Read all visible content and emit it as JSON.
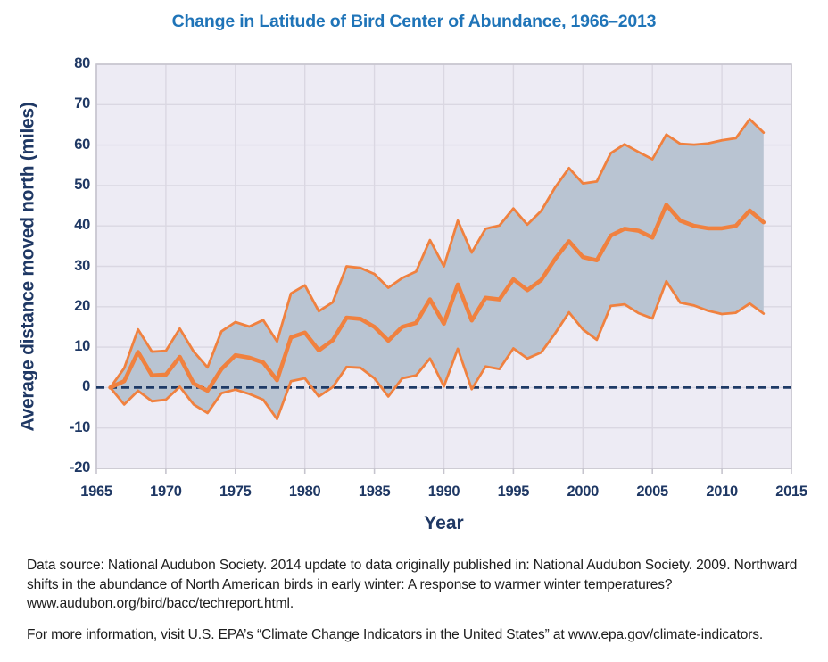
{
  "chart_data": {
    "type": "line",
    "title": "Change in Latitude of Bird Center of Abundance, 1966–2013",
    "xlabel": "Year",
    "ylabel": "Average distance moved north (miles)",
    "xlim": [
      1965,
      2015
    ],
    "ylim": [
      -20,
      80
    ],
    "x_ticks": [
      1965,
      1970,
      1975,
      1980,
      1985,
      1990,
      1995,
      2000,
      2005,
      2010,
      2015
    ],
    "y_ticks": [
      -20,
      -10,
      0,
      10,
      20,
      30,
      40,
      50,
      60,
      70,
      80
    ],
    "grid": true,
    "legend": "none",
    "zero_reference_line": 0,
    "x": [
      1966,
      1967,
      1968,
      1969,
      1970,
      1971,
      1972,
      1973,
      1974,
      1975,
      1976,
      1977,
      1978,
      1979,
      1980,
      1981,
      1982,
      1983,
      1984,
      1985,
      1986,
      1987,
      1988,
      1989,
      1990,
      1991,
      1992,
      1993,
      1994,
      1995,
      1996,
      1997,
      1998,
      1999,
      2000,
      2001,
      2002,
      2003,
      2004,
      2005,
      2006,
      2007,
      2008,
      2009,
      2010,
      2011,
      2012,
      2013
    ],
    "series": [
      {
        "name": "Average distance moved north",
        "role": "center",
        "values": [
          0,
          1.6,
          8.8,
          3.0,
          3.2,
          7.6,
          1.0,
          -0.8,
          4.6,
          8.0,
          7.4,
          6.2,
          1.8,
          12.4,
          13.6,
          9.2,
          11.7,
          17.3,
          17.0,
          15.0,
          11.6,
          15.0,
          16.0,
          21.8,
          15.8,
          25.5,
          16.6,
          22.2,
          21.8,
          26.8,
          24.1,
          26.6,
          31.8,
          36.2,
          32.3,
          31.5,
          37.6,
          39.3,
          38.8,
          37.1,
          45.2,
          41.3,
          40.0,
          39.4,
          39.4,
          40.0,
          43.8,
          40.9
        ]
      },
      {
        "name": "Upper confidence bound",
        "role": "upper",
        "values": [
          0,
          4.8,
          14.4,
          8.9,
          9.1,
          14.6,
          8.9,
          5.0,
          13.9,
          16.2,
          15.1,
          16.7,
          11.4,
          23.3,
          25.3,
          18.9,
          21.1,
          30.0,
          29.6,
          28.1,
          24.7,
          27.1,
          28.7,
          36.5,
          30.0,
          41.3,
          33.4,
          39.3,
          40.1,
          44.3,
          40.3,
          43.7,
          49.5,
          54.3,
          50.5,
          51.0,
          58.0,
          60.2,
          58.3,
          56.5,
          62.6,
          60.3,
          60.1,
          60.4,
          61.2,
          61.7,
          66.4,
          63.1
        ]
      },
      {
        "name": "Lower confidence bound",
        "role": "lower",
        "values": [
          0,
          -4.2,
          -0.8,
          -3.4,
          -3.0,
          0.2,
          -4.2,
          -6.3,
          -1.4,
          -0.5,
          -1.6,
          -3.0,
          -7.8,
          1.6,
          2.3,
          -2.2,
          0.1,
          5.1,
          4.9,
          2.3,
          -2.2,
          2.3,
          3.0,
          7.2,
          0.3,
          9.6,
          -0.4,
          5.2,
          4.6,
          9.7,
          7.2,
          8.7,
          13.4,
          18.6,
          14.4,
          11.8,
          20.2,
          20.6,
          18.4,
          17.1,
          26.3,
          21.0,
          20.3,
          19.0,
          18.2,
          18.5,
          20.8,
          18.3
        ]
      }
    ],
    "band": {
      "between": [
        "Upper confidence bound",
        "Lower confidence bound"
      ]
    }
  },
  "footer": {
    "source_lines": [
      "Data source: National Audubon Society. 2014 update to data originally published in: National Audubon Society. 2009. Northward",
      "shifts in the abundance of North American birds in early winter: A response to warmer winter temperatures?",
      "www.audubon.org/bird/bacc/techreport.html."
    ],
    "info_line": "For more information, visit U.S. EPA’s “Climate Change Indicators in the United States” at www.epa.gov/climate-indicators."
  },
  "colors": {
    "title": "#1f74b8",
    "axis_text": "#1f3864",
    "line": "#f0813f",
    "band_fill": "#b9c4d2",
    "plot_bg": "#edebf4",
    "gridline": "#dad7e2",
    "frame": "#c6c4ce",
    "zero_line": "#1e3a66",
    "footer_text": "#1c1c1c"
  }
}
